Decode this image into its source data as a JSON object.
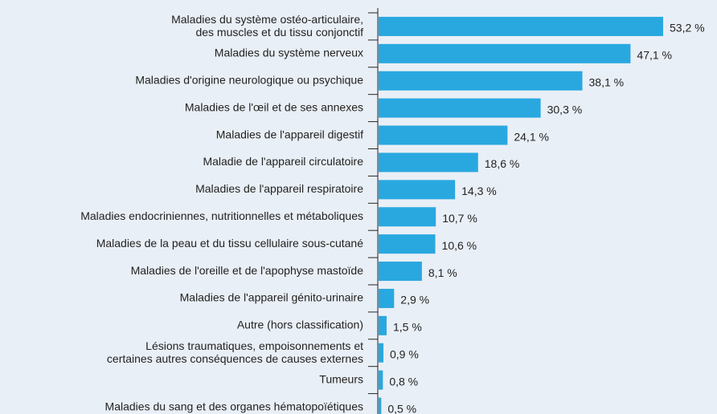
{
  "chart_data": {
    "type": "bar",
    "orientation": "horizontal",
    "color": "#29a8e0",
    "categories": [
      "Maladies du système ostéo-articulaire,\ndes muscles et du tissu conjonctif",
      "Maladies du système nerveux",
      "Maladies d'origine neurologique ou psychique",
      "Maladies de l'œil et de ses annexes",
      "Maladies de l'appareil digestif",
      "Maladie de l'appareil circulatoire",
      "Maladies de l'appareil respiratoire",
      "Maladies endocriniennes, nutritionnelles et métaboliques",
      "Maladies de la peau et du tissu cellulaire sous-cutané",
      "Maladies de l'oreille et de l'apophyse mastoïde",
      "Maladies de l'appareil génito-urinaire",
      "Autre (hors classification)",
      "Lésions traumatiques, empoisonnements et\ncertaines autres conséquences de causes externes",
      "Tumeurs",
      "Maladies du sang et des organes hématopoïétiques"
    ],
    "values": [
      53.2,
      47.1,
      38.1,
      30.3,
      24.1,
      18.6,
      14.3,
      10.7,
      10.6,
      8.1,
      2.9,
      1.5,
      0.9,
      0.8,
      0.5
    ],
    "value_labels": [
      "53,2 %",
      "47,1 %",
      "38,1 %",
      "30,3 %",
      "24,1 %",
      "18,6 %",
      "14,3 %",
      "10,7 %",
      "10,6 %",
      "8,1 %",
      "2,9 %",
      "1,5 %",
      "0,9 %",
      "0,8 %",
      "0,5 %"
    ]
  }
}
